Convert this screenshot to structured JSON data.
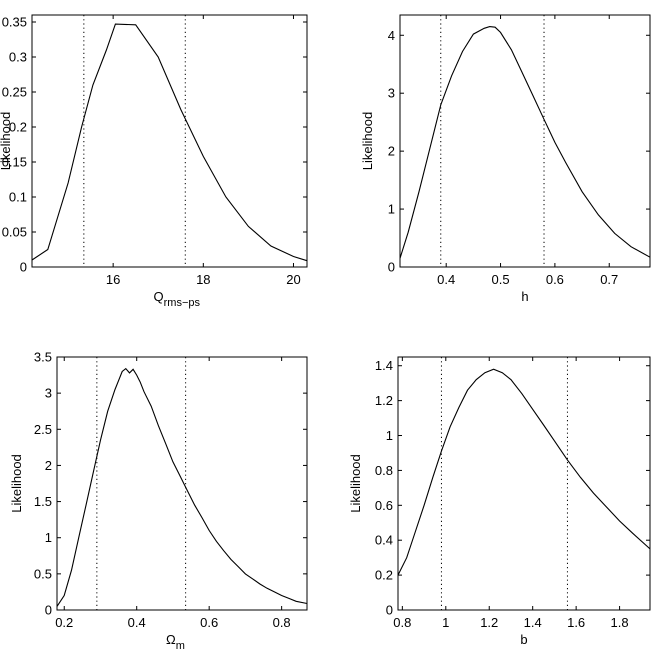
{
  "chart_data": [
    {
      "type": "line",
      "xlabel": "Q",
      "xlabel_sub": "rms−ps",
      "ylabel": "Likelihood",
      "xlim": [
        14.2,
        20.3
      ],
      "ylim": [
        0,
        0.36
      ],
      "xticks": [
        16,
        18,
        20
      ],
      "yticks": [
        0,
        0.05,
        0.1,
        0.15,
        0.2,
        0.25,
        0.3,
        0.35
      ],
      "vlines": [
        15.35,
        17.6
      ],
      "series": [
        {
          "x": [
            14.2,
            14.55,
            15.0,
            15.3,
            15.55,
            15.85,
            16.05,
            16.5,
            17.0,
            17.5,
            18.0,
            18.5,
            19.0,
            19.5,
            20.0,
            20.3
          ],
          "y": [
            0.01,
            0.025,
            0.12,
            0.2,
            0.26,
            0.31,
            0.347,
            0.346,
            0.3,
            0.225,
            0.158,
            0.1,
            0.058,
            0.03,
            0.015,
            0.009
          ]
        }
      ]
    },
    {
      "type": "line",
      "xlabel": "h",
      "ylabel": "Likelihood",
      "xlim": [
        0.315,
        0.775
      ],
      "ylim": [
        0,
        4.35
      ],
      "xticks": [
        0.4,
        0.5,
        0.6,
        0.7
      ],
      "yticks": [
        0,
        1,
        2,
        3,
        4
      ],
      "vlines": [
        0.39,
        0.58
      ],
      "series": [
        {
          "x": [
            0.315,
            0.33,
            0.35,
            0.37,
            0.39,
            0.41,
            0.43,
            0.45,
            0.47,
            0.48,
            0.49,
            0.5,
            0.52,
            0.54,
            0.56,
            0.58,
            0.6,
            0.62,
            0.65,
            0.68,
            0.71,
            0.74,
            0.775
          ],
          "y": [
            0.15,
            0.6,
            1.3,
            2.05,
            2.8,
            3.3,
            3.72,
            4.02,
            4.12,
            4.15,
            4.14,
            4.05,
            3.75,
            3.35,
            2.95,
            2.55,
            2.15,
            1.8,
            1.3,
            0.9,
            0.58,
            0.35,
            0.17
          ]
        }
      ]
    },
    {
      "type": "line",
      "xlabel": "Ω",
      "xlabel_sub": "m",
      "ylabel": "Likelihood",
      "xlim": [
        0.18,
        0.87
      ],
      "ylim": [
        0,
        3.5
      ],
      "xticks": [
        0.2,
        0.4,
        0.6,
        0.8
      ],
      "yticks": [
        0,
        0.5,
        1,
        1.5,
        2,
        2.5,
        3,
        3.5
      ],
      "vlines": [
        0.29,
        0.535
      ],
      "series": [
        {
          "x": [
            0.18,
            0.2,
            0.22,
            0.24,
            0.26,
            0.28,
            0.3,
            0.32,
            0.34,
            0.36,
            0.37,
            0.38,
            0.39,
            0.4,
            0.41,
            0.42,
            0.44,
            0.46,
            0.48,
            0.5,
            0.52,
            0.54,
            0.56,
            0.58,
            0.6,
            0.62,
            0.64,
            0.66,
            0.68,
            0.7,
            0.72,
            0.74,
            0.76,
            0.78,
            0.8,
            0.82,
            0.84,
            0.87
          ],
          "y": [
            0.05,
            0.2,
            0.55,
            1.0,
            1.45,
            1.9,
            2.35,
            2.75,
            3.05,
            3.3,
            3.34,
            3.28,
            3.33,
            3.25,
            3.15,
            3.02,
            2.82,
            2.55,
            2.3,
            2.05,
            1.85,
            1.65,
            1.45,
            1.28,
            1.1,
            0.95,
            0.82,
            0.7,
            0.6,
            0.5,
            0.43,
            0.36,
            0.3,
            0.25,
            0.2,
            0.16,
            0.12,
            0.09
          ]
        }
      ]
    },
    {
      "type": "line",
      "xlabel": "b",
      "ylabel": "Likelihood",
      "xlim": [
        0.78,
        1.94
      ],
      "ylim": [
        0,
        1.45
      ],
      "xticks": [
        0.8,
        1,
        1.2,
        1.4,
        1.6,
        1.8
      ],
      "yticks": [
        0,
        0.2,
        0.4,
        0.6,
        0.8,
        1,
        1.2,
        1.4
      ],
      "vlines": [
        0.98,
        1.56
      ],
      "series": [
        {
          "x": [
            0.78,
            0.82,
            0.86,
            0.9,
            0.94,
            0.98,
            1.02,
            1.06,
            1.1,
            1.14,
            1.18,
            1.22,
            1.26,
            1.3,
            1.35,
            1.4,
            1.45,
            1.5,
            1.56,
            1.62,
            1.68,
            1.74,
            1.8,
            1.86,
            1.94
          ],
          "y": [
            0.2,
            0.3,
            0.45,
            0.6,
            0.76,
            0.91,
            1.05,
            1.16,
            1.26,
            1.32,
            1.36,
            1.38,
            1.36,
            1.32,
            1.24,
            1.15,
            1.06,
            0.97,
            0.86,
            0.76,
            0.67,
            0.59,
            0.51,
            0.44,
            0.35
          ]
        }
      ]
    }
  ]
}
